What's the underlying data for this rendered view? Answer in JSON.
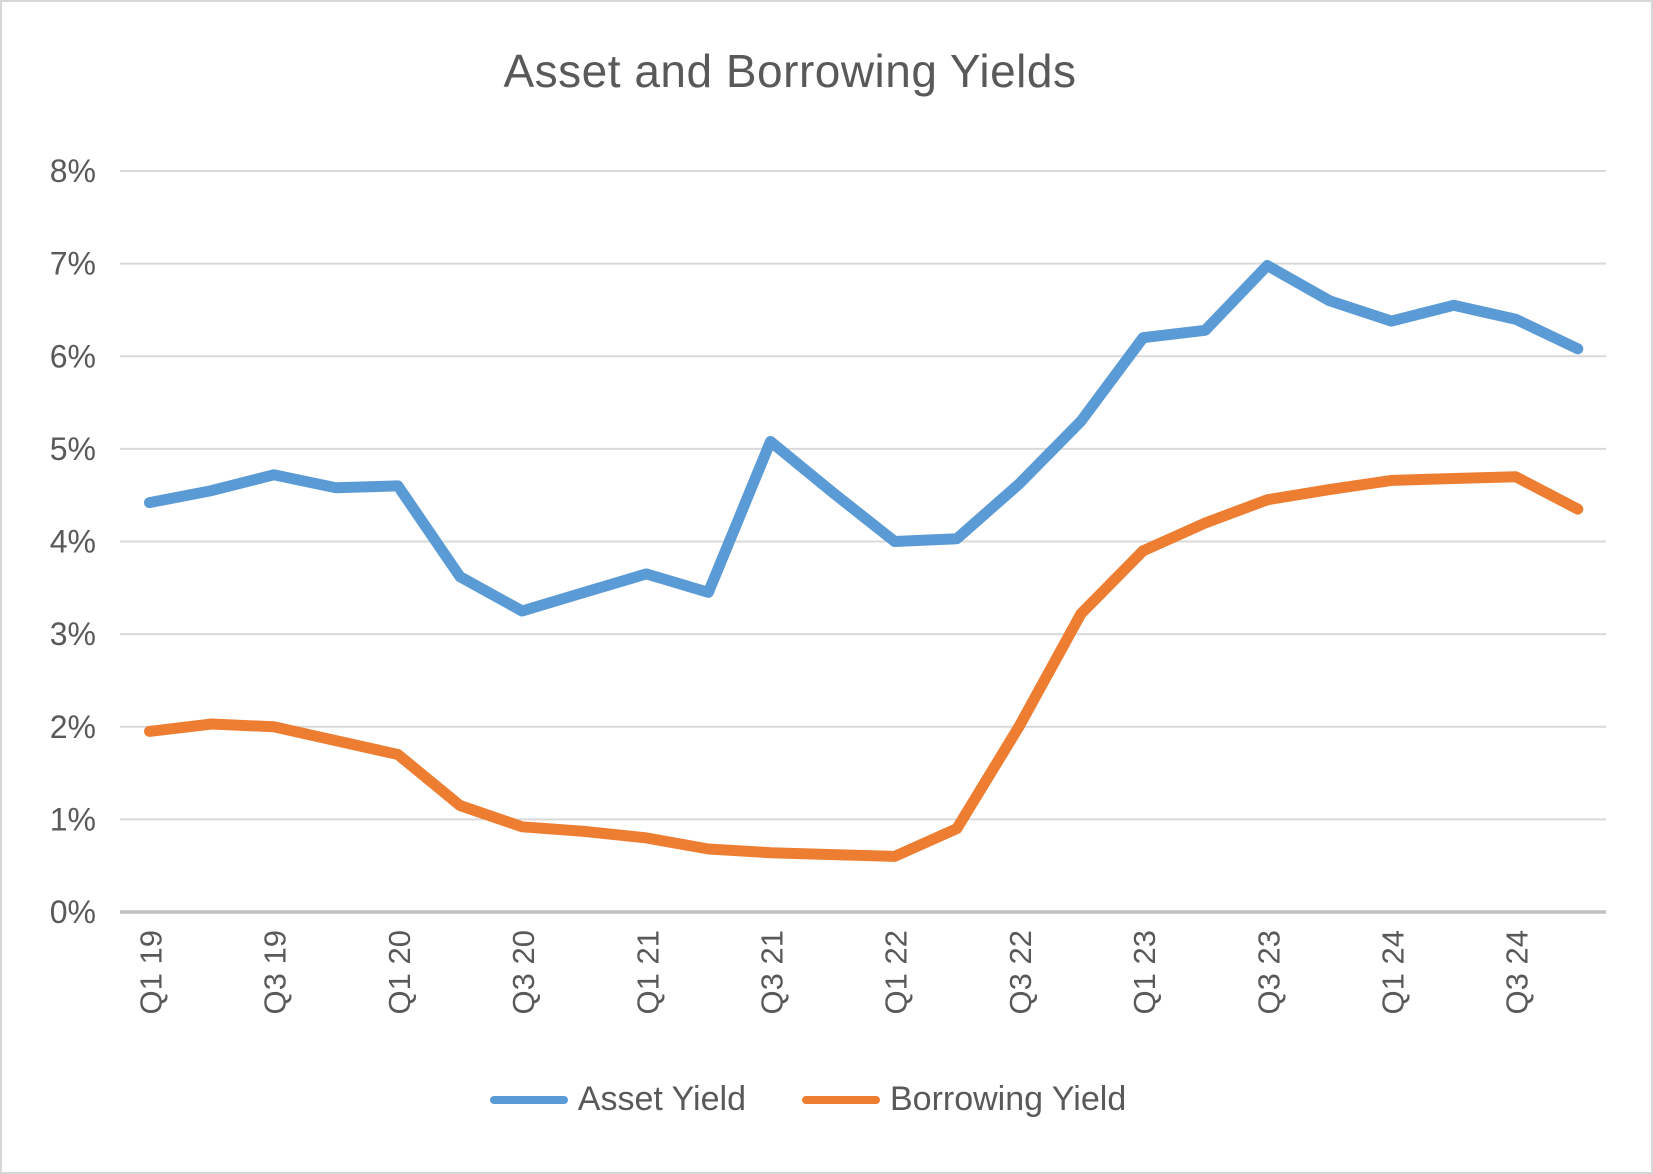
{
  "chart": {
    "colors": {
      "asset_series": "#5B9BD5",
      "borrowing_series": "#ED7D31",
      "text": "#595959",
      "gridline": "#D9D9D9",
      "axis_line": "#C0C0C0",
      "background": "#FFFFFF",
      "frame_border": "#D7D7D7"
    }
  },
  "chart_data": {
    "type": "line",
    "title": "Asset and Borrowing Yields",
    "categories": [
      "Q1 19",
      "Q2 19",
      "Q3 19",
      "Q4 19",
      "Q1 20",
      "Q2 20",
      "Q3 20",
      "Q4 20",
      "Q1 21",
      "Q2 21",
      "Q3 21",
      "Q4 21",
      "Q1 22",
      "Q2 22",
      "Q3 22",
      "Q4 22",
      "Q1 23",
      "Q2 23",
      "Q3 23",
      "Q4 23",
      "Q1 24",
      "Q2 24",
      "Q3 24",
      "Q4 24"
    ],
    "x_tick_labels": [
      "Q1 19",
      "Q3 19",
      "Q1 20",
      "Q3 20",
      "Q1 21",
      "Q3 21",
      "Q1 22",
      "Q3 22",
      "Q1 23",
      "Q3 23",
      "Q1 24",
      "Q3 24"
    ],
    "y_ticks": [
      "8%",
      "7%",
      "6%",
      "5%",
      "4%",
      "3%",
      "2%",
      "1%",
      "0%"
    ],
    "ylim": [
      0,
      8
    ],
    "xlabel": "",
    "ylabel": "",
    "grid": true,
    "legend_position": "bottom",
    "series": [
      {
        "name": "Asset Yield",
        "color": "#5B9BD5",
        "values": [
          4.42,
          4.55,
          4.72,
          4.58,
          4.6,
          3.62,
          3.25,
          3.45,
          3.65,
          3.45,
          5.08,
          4.53,
          4.0,
          4.03,
          4.62,
          5.3,
          6.2,
          6.28,
          6.98,
          6.6,
          6.38,
          6.55,
          6.4,
          6.08
        ]
      },
      {
        "name": "Borrowing Yield",
        "color": "#ED7D31",
        "values": [
          1.95,
          2.03,
          2.0,
          1.85,
          1.7,
          1.15,
          0.92,
          0.87,
          0.8,
          0.68,
          0.64,
          0.62,
          0.6,
          0.9,
          2.0,
          3.22,
          3.9,
          4.2,
          4.45,
          4.56,
          4.66,
          4.68,
          4.7,
          4.35
        ]
      }
    ]
  }
}
